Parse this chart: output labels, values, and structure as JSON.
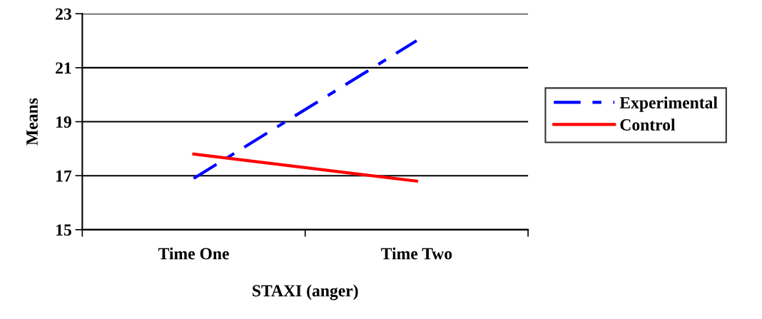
{
  "chart_data": {
    "type": "line",
    "xlabel": "STAXI (anger)",
    "ylabel": "Means",
    "categories": [
      "Time One",
      "Time Two"
    ],
    "series": [
      {
        "name": "Experimental",
        "color": "#0000ff",
        "values": [
          16.9,
          22.0
        ],
        "line_style": "dashed"
      },
      {
        "name": "Control",
        "color": "#ff0000",
        "values": [
          17.8,
          16.8
        ],
        "line_style": "solid"
      }
    ],
    "ylim": [
      15,
      23
    ],
    "yticks": [
      15,
      17,
      19,
      21,
      23
    ],
    "grid": "y",
    "legend": "right",
    "marker": "none"
  }
}
